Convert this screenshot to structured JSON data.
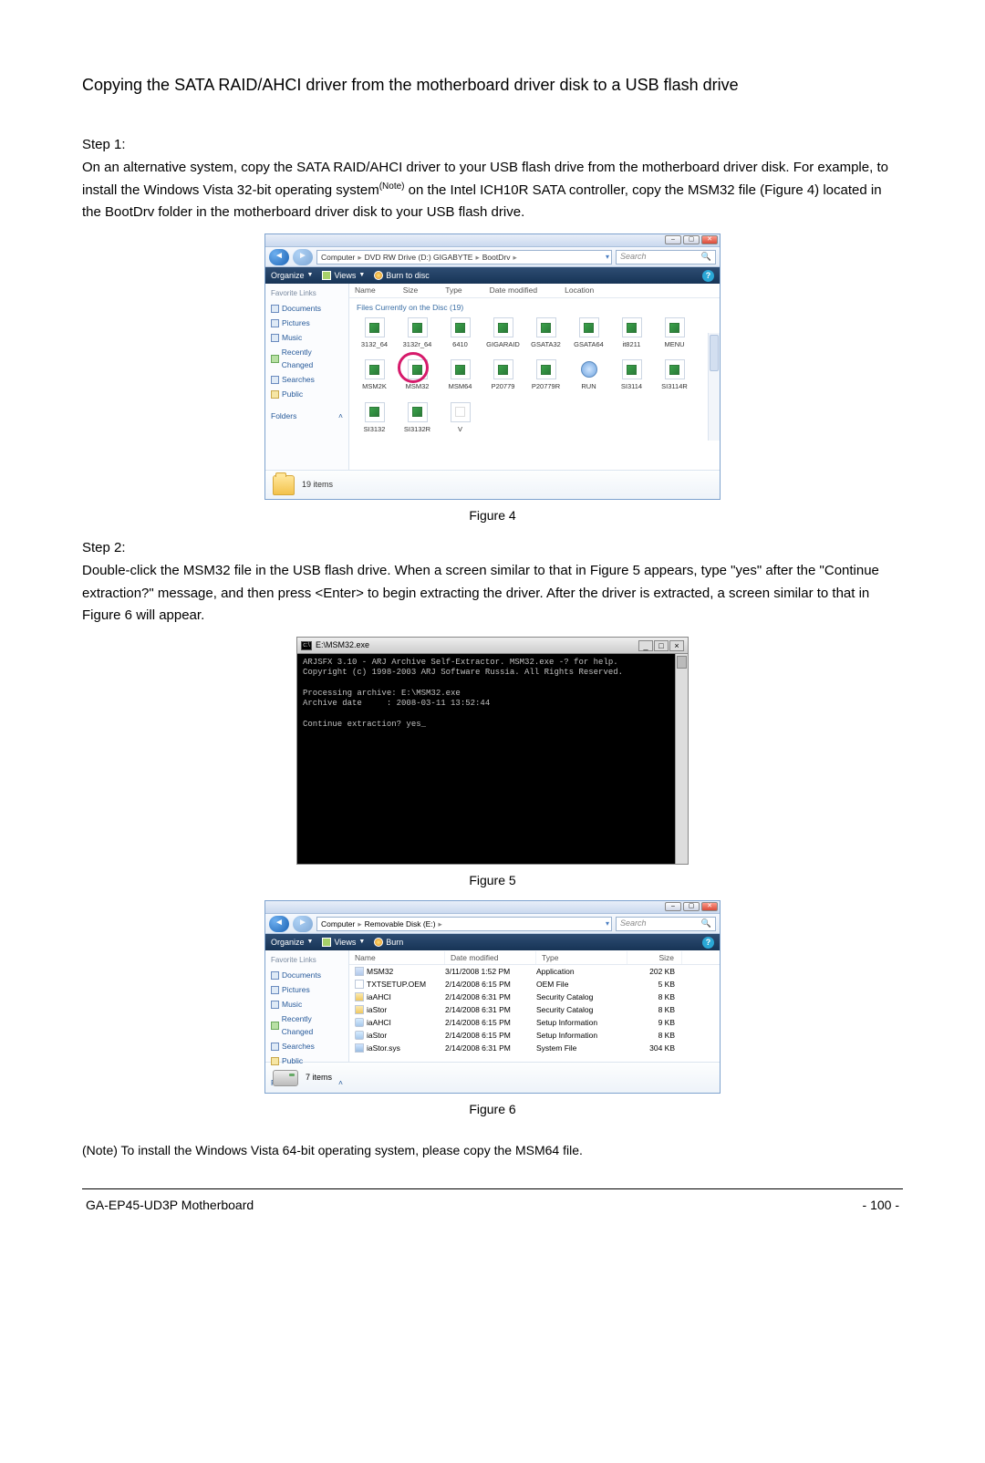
{
  "title": "Copying the SATA RAID/AHCI driver from the motherboard driver disk to a USB flash drive",
  "step1_label": "Step 1:",
  "step1_p1a": "On an alternative system, copy the SATA RAID/AHCI driver to your USB flash drive from the motherboard driver disk. For example, to install the Windows Vista 32-bit operating system",
  "step1_note_sup": "(Note)",
  "step1_p1b": " on the Intel ICH10R SATA controller, copy the ",
  "step1_msm32": "MSM32",
  "step1_p1c": " file (Figure 4) located in the ",
  "step1_bootdrv": "BootDrv",
  "step1_p1d": " folder in the motherboard driver disk to your USB flash drive.",
  "fig4_caption": "Figure 4",
  "step2_label": "Step 2:",
  "step2_p1a": "Double-click the ",
  "step2_msm32": "MSM32",
  "step2_p1b": " file in the USB flash drive. When a screen similar to that in Figure 5 appears, type \"yes\" after the \"Continue extraction?\" message, and then press <Enter> to begin extracting the driver. After the driver is extracted, a screen similar to that in Figure 6 will appear.",
  "fig5_caption": "Figure 5",
  "fig6_caption": "Figure 6",
  "note_line_a": "(Note)    To install the Windows Vista 64-bit operating system, please copy the ",
  "note_line_b": "MSM64",
  "note_line_c": " file.",
  "footer_left": "GA-EP45-UD3P Motherboard",
  "footer_right": "- 100 -",
  "fig4": {
    "breadcrumb": [
      "Computer",
      "DVD RW Drive (D:) GIGABYTE",
      "BootDrv"
    ],
    "search_placeholder": "Search",
    "toolbar": {
      "organize": "Organize",
      "views": "Views",
      "burn": "Burn to disc"
    },
    "columns": [
      "Name",
      "Size",
      "Type",
      "Date modified",
      "Location"
    ],
    "group": "Files Currently on the Disc (19)",
    "sidebar_header": "Favorite Links",
    "sidebar": [
      "Documents",
      "Pictures",
      "Music",
      "Recently Changed",
      "Searches",
      "Public"
    ],
    "folders_label": "Folders",
    "files_row1": [
      "3132_64",
      "3132r_64",
      "6410",
      "GIGARAID",
      "GSATA32",
      "GSATA64",
      "it8211",
      "MENU"
    ],
    "files_row2": [
      "MSM2K",
      "MSM32",
      "MSM64",
      "P20779",
      "P20779R",
      "RUN",
      "SI3114",
      "SI3114R"
    ],
    "files_row3": [
      "SI3132",
      "SI3132R",
      "V"
    ],
    "status": "19 items",
    "circled_index": 1
  },
  "fig5": {
    "title": "E:\\MSM32.exe",
    "lines": [
      "ARJSFX 3.10 - ARJ Archive Self-Extractor. MSM32.exe -? for help.",
      "Copyright (c) 1998-2003 ARJ Software Russia. All Rights Reserved.",
      "",
      "Processing archive: E:\\MSM32.exe",
      "Archive date     : 2008-03-11 13:52:44",
      "",
      "Continue extraction? yes_"
    ]
  },
  "fig6": {
    "breadcrumb": [
      "Computer",
      "Removable Disk (E:)"
    ],
    "search_placeholder": "Search",
    "toolbar": {
      "organize": "Organize",
      "views": "Views",
      "burn": "Burn"
    },
    "columns": [
      "Name",
      "Date modified",
      "Type",
      "Size"
    ],
    "sidebar_header": "Favorite Links",
    "sidebar": [
      "Documents",
      "Pictures",
      "Music",
      "Recently Changed",
      "Searches",
      "Public"
    ],
    "folders_label": "Folders",
    "rows": [
      {
        "ico": "app",
        "name": "MSM32",
        "date": "3/11/2008 1:52 PM",
        "type": "Application",
        "size": "202 KB"
      },
      {
        "ico": "txt",
        "name": "TXTSETUP.OEM",
        "date": "2/14/2008 6:15 PM",
        "type": "OEM File",
        "size": "5 KB"
      },
      {
        "ico": "cat",
        "name": "iaAHCI",
        "date": "2/14/2008 6:31 PM",
        "type": "Security Catalog",
        "size": "8 KB"
      },
      {
        "ico": "cat",
        "name": "iaStor",
        "date": "2/14/2008 6:31 PM",
        "type": "Security Catalog",
        "size": "8 KB"
      },
      {
        "ico": "inf",
        "name": "iaAHCI",
        "date": "2/14/2008 6:15 PM",
        "type": "Setup Information",
        "size": "9 KB"
      },
      {
        "ico": "inf",
        "name": "iaStor",
        "date": "2/14/2008 6:15 PM",
        "type": "Setup Information",
        "size": "8 KB"
      },
      {
        "ico": "sys",
        "name": "iaStor.sys",
        "date": "2/14/2008 6:31 PM",
        "type": "System File",
        "size": "304 KB"
      }
    ],
    "status": "7 items"
  }
}
